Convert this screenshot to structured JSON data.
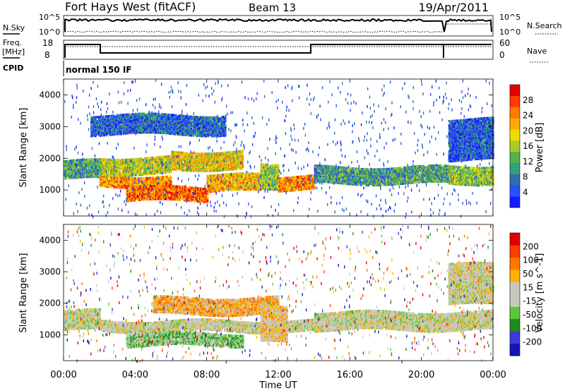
{
  "header": {
    "station": "Fort Hays West (fitACF)",
    "beam": "Beam 13",
    "date": "19/Apr/2011"
  },
  "status_panels": {
    "nsky_label": "N.Sky",
    "nsky_ticks": [
      "10^5",
      "10^0"
    ],
    "nsearch_label": "N.Search",
    "nsearch_ticks": [
      "10^5",
      "10^0"
    ],
    "freq_label_line1": "Freq.",
    "freq_label_line2": "[MHz]",
    "freq_ticks": [
      "18",
      "8"
    ],
    "nave_label": "Nave",
    "nave_ticks": [
      "60",
      "0"
    ],
    "cpid_label": "CPID",
    "cpid_value": "normal 150 IF"
  },
  "x_axis": {
    "label": "Time UT",
    "ticks": [
      "00:00",
      "04:00",
      "08:00",
      "12:00",
      "16:00",
      "20:00",
      "00:00"
    ]
  },
  "colors": {
    "power_scale": [
      "#1a1aff",
      "#2850ff",
      "#2f6fb0",
      "#35a080",
      "#55b04a",
      "#a8cc2a",
      "#f0dc00",
      "#ffaa00",
      "#ff7a00",
      "#ff3c00",
      "#e60000"
    ],
    "velocity_scale": [
      "#1414b4",
      "#3c3cd2",
      "#1e8c1e",
      "#5ac83c",
      "#c8c8c0",
      "#c8c8c0",
      "#ffb400",
      "#ff7800",
      "#ff3c00",
      "#e10000"
    ]
  },
  "chart_data": [
    {
      "type": "heatmap",
      "title": "",
      "xlabel": "",
      "ylabel": "Slant Range [km]",
      "xlim": [
        0,
        24
      ],
      "ylim": [
        180,
        4500
      ],
      "yticks": [
        "4000",
        "3000",
        "2000",
        "1000"
      ],
      "colorbar": {
        "label": "Power [dB]",
        "ticks": [
          "28",
          "24",
          "20",
          "16",
          "12",
          "8",
          "4"
        ],
        "range": [
          0,
          30
        ]
      },
      "echo_bands": [
        {
          "t_start": 0.0,
          "t_end": 2.0,
          "r_low": 1400,
          "r_high": 1950,
          "power": 10
        },
        {
          "t_start": 2.0,
          "t_end": 6.0,
          "r_low": 1150,
          "r_high": 1500,
          "power": 22
        },
        {
          "t_start": 2.0,
          "t_end": 6.0,
          "r_low": 1550,
          "r_high": 2050,
          "power": 16
        },
        {
          "t_start": 3.5,
          "t_end": 8.0,
          "r_low": 700,
          "r_high": 1150,
          "power": 24
        },
        {
          "t_start": 6.0,
          "t_end": 10.0,
          "r_low": 1700,
          "r_high": 2250,
          "power": 18
        },
        {
          "t_start": 8.0,
          "t_end": 11.0,
          "r_low": 1000,
          "r_high": 1500,
          "power": 20
        },
        {
          "t_start": 11.0,
          "t_end": 12.0,
          "r_low": 1100,
          "r_high": 1900,
          "power": 14
        },
        {
          "t_start": 12.0,
          "t_end": 14.0,
          "r_low": 1050,
          "r_high": 1500,
          "power": 22
        },
        {
          "t_start": 14.0,
          "t_end": 21.5,
          "r_low": 1250,
          "r_high": 1750,
          "power": 10
        },
        {
          "t_start": 21.5,
          "t_end": 24.0,
          "r_low": 1250,
          "r_high": 1800,
          "power": 14
        },
        {
          "t_start": 1.5,
          "t_end": 9.0,
          "r_low": 2800,
          "r_high": 3400,
          "power": 6
        },
        {
          "t_start": 21.5,
          "t_end": 24.0,
          "r_low": 2000,
          "r_high": 3300,
          "power": 5
        }
      ]
    },
    {
      "type": "heatmap",
      "title": "",
      "xlabel": "Time UT",
      "ylabel": "Slant Range [km]",
      "xlim": [
        0,
        24
      ],
      "ylim": [
        180,
        4500
      ],
      "yticks": [
        "4000",
        "3000",
        "2000",
        "1000"
      ],
      "colorbar": {
        "label": "Velocity [m s^-1]",
        "ticks": [
          "200",
          "100",
          "50",
          "15",
          "-15",
          "-50",
          "-100",
          "-200"
        ],
        "range": [
          -250,
          250
        ]
      },
      "echo_bands": [
        {
          "t_start": 0.0,
          "t_end": 2.0,
          "r_low": 1200,
          "r_high": 1800,
          "velocity": 0
        },
        {
          "t_start": 2.0,
          "t_end": 14.0,
          "r_low": 1150,
          "r_high": 1500,
          "velocity": 0
        },
        {
          "t_start": 3.5,
          "t_end": 10.0,
          "r_low": 700,
          "r_high": 1100,
          "velocity": -60
        },
        {
          "t_start": 5.0,
          "t_end": 12.0,
          "r_low": 1700,
          "r_high": 2200,
          "velocity": 80
        },
        {
          "t_start": 11.0,
          "t_end": 12.5,
          "r_low": 800,
          "r_high": 1900,
          "velocity": 40
        },
        {
          "t_start": 14.0,
          "t_end": 24.0,
          "r_low": 1200,
          "r_high": 1750,
          "velocity": 0
        },
        {
          "t_start": 21.5,
          "t_end": 24.0,
          "r_low": 2000,
          "r_high": 3300,
          "velocity": 5
        }
      ]
    }
  ]
}
